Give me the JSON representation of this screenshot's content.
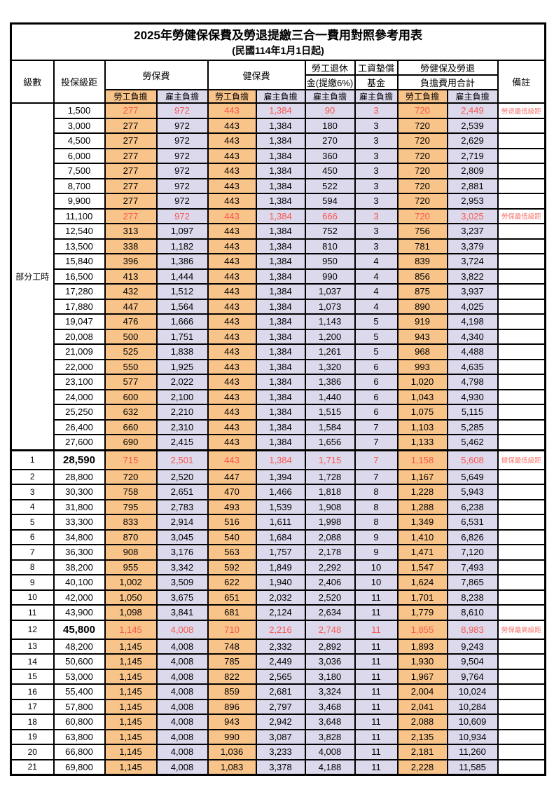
{
  "title": {
    "main": "2025年勞健保保費及勞退提繳三合一費用對照參考用表",
    "sub": "(民國114年1月1日起)"
  },
  "colors": {
    "worker_bg": "#F9C489",
    "employer_bg": "#DCD9EC",
    "red_text": "#F9564F",
    "remark_red": "#F4756D",
    "border": "#000000"
  },
  "table": {
    "header": {
      "level": "級數",
      "bracket": "投保級距",
      "labor": "勞保費",
      "health": "健保費",
      "pension_l1": "勞工退休",
      "pension_l2": "金(提繳6%)",
      "wage_l1": "工資墊償",
      "wage_l2": "基金",
      "total_l1": "勞健保及勞退",
      "total_l2": "負擔費用合計",
      "remark": "備註",
      "worker": "勞工負擔",
      "employer": "雇主負擔"
    },
    "rows": [
      {
        "lv": "部分工時",
        "lvspan": 23,
        "b": "1,500",
        "c": [
          "277",
          "972",
          "443",
          "1,384",
          "90",
          "3",
          "720",
          "2,449"
        ],
        "r": "勞退最低級距",
        "red": true
      },
      {
        "b": "3,000",
        "c": [
          "277",
          "972",
          "443",
          "1,384",
          "180",
          "3",
          "720",
          "2,539"
        ]
      },
      {
        "b": "4,500",
        "c": [
          "277",
          "972",
          "443",
          "1,384",
          "270",
          "3",
          "720",
          "2,629"
        ]
      },
      {
        "b": "6,000",
        "c": [
          "277",
          "972",
          "443",
          "1,384",
          "360",
          "3",
          "720",
          "2,719"
        ]
      },
      {
        "b": "7,500",
        "c": [
          "277",
          "972",
          "443",
          "1,384",
          "450",
          "3",
          "720",
          "2,809"
        ]
      },
      {
        "b": "8,700",
        "c": [
          "277",
          "972",
          "443",
          "1,384",
          "522",
          "3",
          "720",
          "2,881"
        ]
      },
      {
        "b": "9,900",
        "c": [
          "277",
          "972",
          "443",
          "1,384",
          "594",
          "3",
          "720",
          "2,953"
        ]
      },
      {
        "b": "11,100",
        "c": [
          "277",
          "972",
          "443",
          "1,384",
          "666",
          "3",
          "720",
          "3,025"
        ],
        "r": "勞保最低級距",
        "red": true
      },
      {
        "b": "12,540",
        "c": [
          "313",
          "1,097",
          "443",
          "1,384",
          "752",
          "3",
          "756",
          "3,237"
        ]
      },
      {
        "b": "13,500",
        "c": [
          "338",
          "1,182",
          "443",
          "1,384",
          "810",
          "3",
          "781",
          "3,379"
        ]
      },
      {
        "b": "15,840",
        "c": [
          "396",
          "1,386",
          "443",
          "1,384",
          "950",
          "4",
          "839",
          "3,724"
        ]
      },
      {
        "b": "16,500",
        "c": [
          "413",
          "1,444",
          "443",
          "1,384",
          "990",
          "4",
          "856",
          "3,822"
        ]
      },
      {
        "b": "17,280",
        "c": [
          "432",
          "1,512",
          "443",
          "1,384",
          "1,037",
          "4",
          "875",
          "3,937"
        ]
      },
      {
        "b": "17,880",
        "c": [
          "447",
          "1,564",
          "443",
          "1,384",
          "1,073",
          "4",
          "890",
          "4,025"
        ]
      },
      {
        "b": "19,047",
        "c": [
          "476",
          "1,666",
          "443",
          "1,384",
          "1,143",
          "5",
          "919",
          "4,198"
        ]
      },
      {
        "b": "20,008",
        "c": [
          "500",
          "1,751",
          "443",
          "1,384",
          "1,200",
          "5",
          "943",
          "4,340"
        ]
      },
      {
        "b": "21,009",
        "c": [
          "525",
          "1,838",
          "443",
          "1,384",
          "1,261",
          "5",
          "968",
          "4,488"
        ]
      },
      {
        "b": "22,000",
        "c": [
          "550",
          "1,925",
          "443",
          "1,384",
          "1,320",
          "6",
          "993",
          "4,635"
        ]
      },
      {
        "b": "23,100",
        "c": [
          "577",
          "2,022",
          "443",
          "1,384",
          "1,386",
          "6",
          "1,020",
          "4,798"
        ]
      },
      {
        "b": "24,000",
        "c": [
          "600",
          "2,100",
          "443",
          "1,384",
          "1,440",
          "6",
          "1,043",
          "4,930"
        ]
      },
      {
        "b": "25,250",
        "c": [
          "632",
          "2,210",
          "443",
          "1,384",
          "1,515",
          "6",
          "1,075",
          "5,115"
        ]
      },
      {
        "b": "26,400",
        "c": [
          "660",
          "2,310",
          "443",
          "1,384",
          "1,584",
          "7",
          "1,103",
          "5,285"
        ]
      },
      {
        "b": "27,600",
        "c": [
          "690",
          "2,415",
          "443",
          "1,384",
          "1,656",
          "7",
          "1,133",
          "5,462"
        ]
      },
      {
        "lv": "1",
        "b": "28,590",
        "c": [
          "715",
          "2,501",
          "443",
          "1,384",
          "1,715",
          "7",
          "1,158",
          "5,608"
        ],
        "r": "健保最低級距",
        "red": true,
        "bold": true,
        "sep": true,
        "tall": true
      },
      {
        "lv": "2",
        "b": "28,800",
        "c": [
          "720",
          "2,520",
          "447",
          "1,394",
          "1,728",
          "7",
          "1,167",
          "5,649"
        ]
      },
      {
        "lv": "3",
        "b": "30,300",
        "c": [
          "758",
          "2,651",
          "470",
          "1,466",
          "1,818",
          "8",
          "1,228",
          "5,943"
        ]
      },
      {
        "lv": "4",
        "b": "31,800",
        "c": [
          "795",
          "2,783",
          "493",
          "1,539",
          "1,908",
          "8",
          "1,288",
          "6,238"
        ]
      },
      {
        "lv": "5",
        "b": "33,300",
        "c": [
          "833",
          "2,914",
          "516",
          "1,611",
          "1,998",
          "8",
          "1,349",
          "6,531"
        ]
      },
      {
        "lv": "6",
        "b": "34,800",
        "c": [
          "870",
          "3,045",
          "540",
          "1,684",
          "2,088",
          "9",
          "1,410",
          "6,826"
        ]
      },
      {
        "lv": "7",
        "b": "36,300",
        "c": [
          "908",
          "3,176",
          "563",
          "1,757",
          "2,178",
          "9",
          "1,471",
          "7,120"
        ]
      },
      {
        "lv": "8",
        "b": "38,200",
        "c": [
          "955",
          "3,342",
          "592",
          "1,849",
          "2,292",
          "10",
          "1,547",
          "7,493"
        ]
      },
      {
        "lv": "9",
        "b": "40,100",
        "c": [
          "1,002",
          "3,509",
          "622",
          "1,940",
          "2,406",
          "10",
          "1,624",
          "7,865"
        ]
      },
      {
        "lv": "10",
        "b": "42,000",
        "c": [
          "1,050",
          "3,675",
          "651",
          "2,032",
          "2,520",
          "11",
          "1,701",
          "8,238"
        ]
      },
      {
        "lv": "11",
        "b": "43,900",
        "c": [
          "1,098",
          "3,841",
          "681",
          "2,124",
          "2,634",
          "11",
          "1,779",
          "8,610"
        ]
      },
      {
        "lv": "12",
        "b": "45,800",
        "c": [
          "1,145",
          "4,008",
          "710",
          "2,216",
          "2,748",
          "11",
          "1,855",
          "8,983"
        ],
        "r": "勞保最高級距",
        "red": true,
        "bold": true,
        "tall": true
      },
      {
        "lv": "13",
        "b": "48,200",
        "c": [
          "1,145",
          "4,008",
          "748",
          "2,332",
          "2,892",
          "11",
          "1,893",
          "9,243"
        ]
      },
      {
        "lv": "14",
        "b": "50,600",
        "c": [
          "1,145",
          "4,008",
          "785",
          "2,449",
          "3,036",
          "11",
          "1,930",
          "9,504"
        ]
      },
      {
        "lv": "15",
        "b": "53,000",
        "c": [
          "1,145",
          "4,008",
          "822",
          "2,565",
          "3,180",
          "11",
          "1,967",
          "9,764"
        ]
      },
      {
        "lv": "16",
        "b": "55,400",
        "c": [
          "1,145",
          "4,008",
          "859",
          "2,681",
          "3,324",
          "11",
          "2,004",
          "10,024"
        ]
      },
      {
        "lv": "17",
        "b": "57,800",
        "c": [
          "1,145",
          "4,008",
          "896",
          "2,797",
          "3,468",
          "11",
          "2,041",
          "10,284"
        ]
      },
      {
        "lv": "18",
        "b": "60,800",
        "c": [
          "1,145",
          "4,008",
          "943",
          "2,942",
          "3,648",
          "11",
          "2,088",
          "10,609"
        ]
      },
      {
        "lv": "19",
        "b": "63,800",
        "c": [
          "1,145",
          "4,008",
          "990",
          "3,087",
          "3,828",
          "11",
          "2,135",
          "10,934"
        ]
      },
      {
        "lv": "20",
        "b": "66,800",
        "c": [
          "1,145",
          "4,008",
          "1,036",
          "3,233",
          "4,008",
          "11",
          "2,181",
          "11,260"
        ]
      },
      {
        "lv": "21",
        "b": "69,800",
        "c": [
          "1,145",
          "4,008",
          "1,083",
          "3,378",
          "4,188",
          "11",
          "2,228",
          "11,585"
        ]
      }
    ]
  }
}
